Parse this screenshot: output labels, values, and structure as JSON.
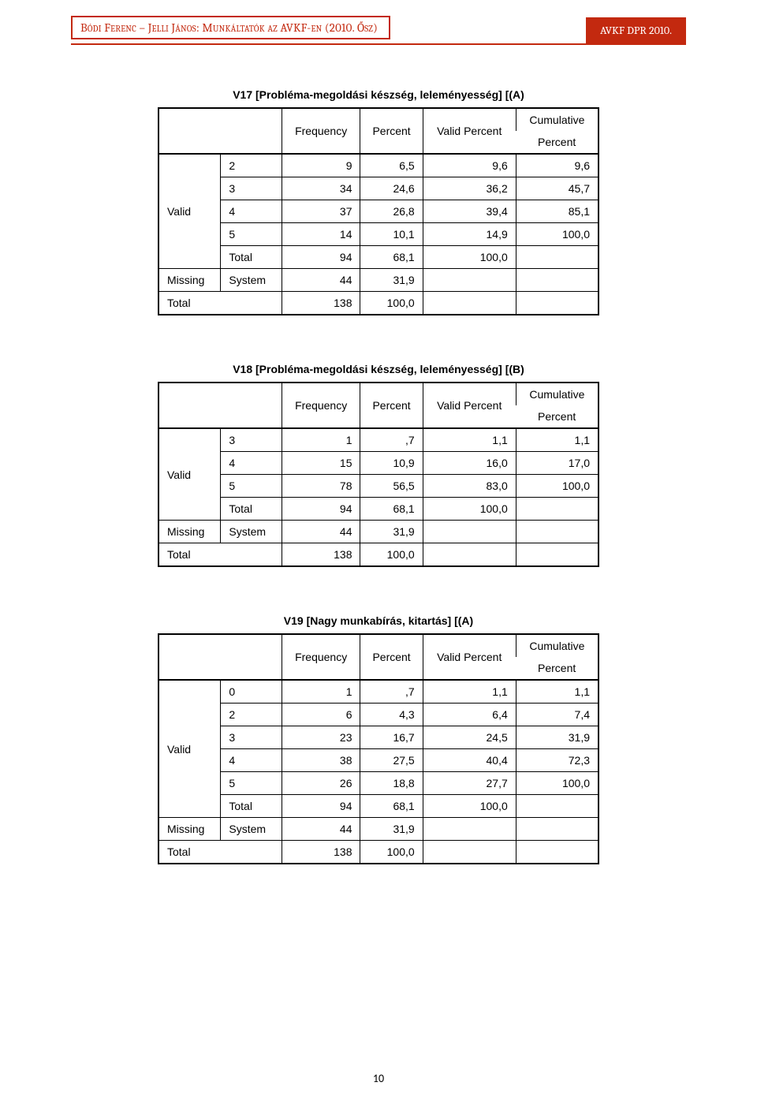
{
  "header": {
    "left": "Bódi Ferenc – Jelli János: Munkáltatók az AVKF-en (2010. Ősz)",
    "right": "AVKF DPR 2010."
  },
  "colors": {
    "accent": "#c3290f",
    "text": "#000000",
    "bg": "#ffffff"
  },
  "columns": {
    "freq": "Frequency",
    "pct": "Percent",
    "vpct": "Valid Percent",
    "cum": "Cumulative Percent"
  },
  "labels": {
    "valid": "Valid",
    "missing": "Missing",
    "system": "System",
    "total": "Total"
  },
  "tables": [
    {
      "title": "V17 [Probléma-megoldási készség, leleményesség] [(A)",
      "valid_rows": [
        {
          "cat": "2",
          "f": "9",
          "p": "6,5",
          "vp": "9,6",
          "cp": "9,6"
        },
        {
          "cat": "3",
          "f": "34",
          "p": "24,6",
          "vp": "36,2",
          "cp": "45,7"
        },
        {
          "cat": "4",
          "f": "37",
          "p": "26,8",
          "vp": "39,4",
          "cp": "85,1"
        },
        {
          "cat": "5",
          "f": "14",
          "p": "10,1",
          "vp": "14,9",
          "cp": "100,0"
        }
      ],
      "valid_total": {
        "f": "94",
        "p": "68,1",
        "vp": "100,0"
      },
      "missing": {
        "f": "44",
        "p": "31,9"
      },
      "total": {
        "f": "138",
        "p": "100,0"
      }
    },
    {
      "title": "V18 [Probléma-megoldási készség, leleményesség] [(B)",
      "valid_rows": [
        {
          "cat": "3",
          "f": "1",
          "p": ",7",
          "vp": "1,1",
          "cp": "1,1"
        },
        {
          "cat": "4",
          "f": "15",
          "p": "10,9",
          "vp": "16,0",
          "cp": "17,0"
        },
        {
          "cat": "5",
          "f": "78",
          "p": "56,5",
          "vp": "83,0",
          "cp": "100,0"
        }
      ],
      "valid_total": {
        "f": "94",
        "p": "68,1",
        "vp": "100,0"
      },
      "missing": {
        "f": "44",
        "p": "31,9"
      },
      "total": {
        "f": "138",
        "p": "100,0"
      }
    },
    {
      "title": "V19 [Nagy munkabírás, kitartás] [(A)",
      "valid_rows": [
        {
          "cat": "0",
          "f": "1",
          "p": ",7",
          "vp": "1,1",
          "cp": "1,1"
        },
        {
          "cat": "2",
          "f": "6",
          "p": "4,3",
          "vp": "6,4",
          "cp": "7,4"
        },
        {
          "cat": "3",
          "f": "23",
          "p": "16,7",
          "vp": "24,5",
          "cp": "31,9"
        },
        {
          "cat": "4",
          "f": "38",
          "p": "27,5",
          "vp": "40,4",
          "cp": "72,3"
        },
        {
          "cat": "5",
          "f": "26",
          "p": "18,8",
          "vp": "27,7",
          "cp": "100,0"
        }
      ],
      "valid_total": {
        "f": "94",
        "p": "68,1",
        "vp": "100,0"
      },
      "missing": {
        "f": "44",
        "p": "31,9"
      },
      "total": {
        "f": "138",
        "p": "100,0"
      }
    }
  ],
  "page_number": "10"
}
